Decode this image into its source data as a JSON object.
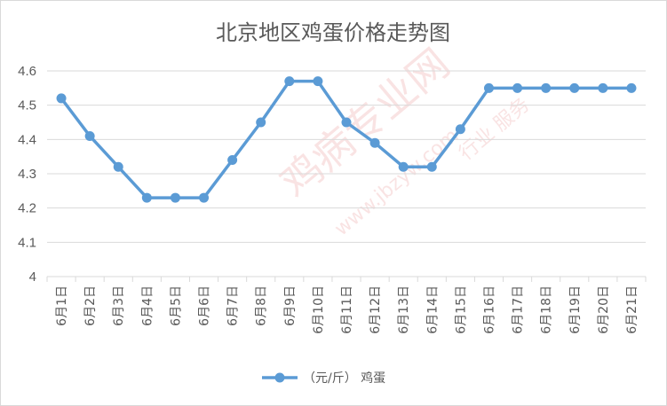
{
  "chart_data": {
    "type": "line",
    "title": "北京地区鸡蛋价格走势图",
    "categories": [
      "6月1日",
      "6月2日",
      "6月3日",
      "6月4日",
      "6月5日",
      "6月6日",
      "6月7日",
      "6月8日",
      "6月9日",
      "6月10日",
      "6月11日",
      "6月12日",
      "6月13日",
      "6月14日",
      "6月15日",
      "6月16日",
      "6月17日",
      "6月18日",
      "6月19日",
      "6月20日",
      "6月21日"
    ],
    "series": [
      {
        "name": "（元/斤） 鸡蛋",
        "color": "#5b9bd5",
        "values": [
          4.52,
          4.41,
          4.32,
          4.23,
          4.23,
          4.23,
          4.34,
          4.45,
          4.57,
          4.57,
          4.45,
          4.39,
          4.32,
          4.32,
          4.43,
          4.55,
          4.55,
          4.55,
          4.55,
          4.55,
          4.55
        ]
      }
    ],
    "ylim": [
      4,
      4.6
    ],
    "yticks": [
      "4",
      "4.1",
      "4.2",
      "4.3",
      "4.4",
      "4.5",
      "4.6"
    ],
    "grid": true,
    "legend_position": "bottom"
  },
  "watermark": {
    "lines": [
      "鸡病专业网",
      "www.jbzyw.com",
      "行业 服务"
    ],
    "color": "#e85a5a"
  }
}
